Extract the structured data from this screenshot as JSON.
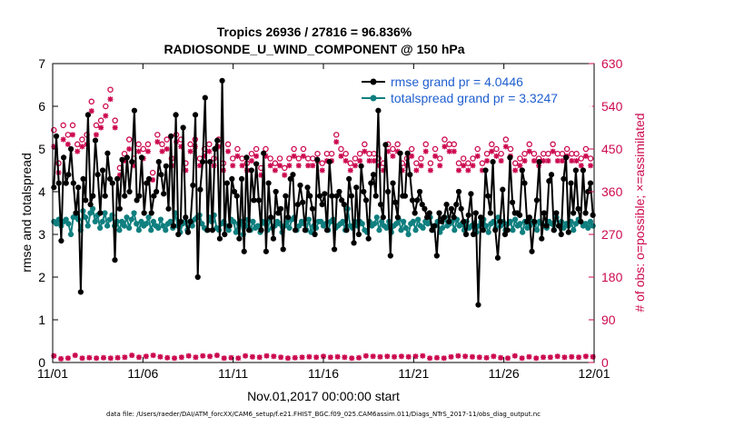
{
  "chart_data": {
    "type": "line",
    "title": "Tropics 26936 / 27816 = 96.836%",
    "subtitle": "RADIOSONDE_U_WIND_COMPONENT @ 150 hPa",
    "xlabel": "Nov.01,2017 00:00:00 start",
    "ylabel": "rmse and totalspread",
    "ylabel_right": "# of obs: o=possible; ×=assimilated",
    "footnote": "data file: /Users/raeder/DAI/ATM_forcXX/CAM6_setup/f.e21.FHIST_BGC.f09_025.CAM6assim.011/Diags_NTrS_2017-11/obs_diag_output.nc",
    "xlim": [
      0,
      30
    ],
    "ylim": [
      0,
      7
    ],
    "ylim_right": [
      0,
      630
    ],
    "x_ticks": [
      0,
      5,
      10,
      15,
      20,
      25,
      30
    ],
    "x_tick_labels": [
      "11/01",
      "11/06",
      "11/11",
      "11/16",
      "11/21",
      "11/26",
      "12/01"
    ],
    "y_ticks": [
      0,
      1,
      2,
      3,
      4,
      5,
      6,
      7
    ],
    "y_tick_labels": [
      "0",
      "1",
      "2",
      "3",
      "4",
      "5",
      "6",
      "7"
    ],
    "y_right_ticks": [
      0,
      90,
      180,
      270,
      360,
      450,
      540,
      630
    ],
    "y_right_tick_labels": [
      "0",
      "90",
      "180",
      "270",
      "360",
      "450",
      "540",
      "630"
    ],
    "legend_position": "top-right",
    "colors": {
      "rmse": "#000000",
      "spread": "#0f7f7f",
      "obs": "#cc0a4f",
      "legend_text": "#1f5fcf"
    },
    "series": [
      {
        "name": "rmse grand pr = 4.0446",
        "axis": "left",
        "values": [
          4.1,
          5.3,
          4.2,
          2.85,
          4.8,
          4.2,
          4.4,
          5.0,
          4.2,
          3.5,
          4.1,
          1.65,
          4.3,
          3.8,
          5.8,
          3.7,
          3.9,
          5.2,
          4.4,
          3.5,
          4.5,
          3.9,
          4.9,
          4.3,
          4.2,
          2.4,
          4.3,
          3.6,
          4.75,
          3.9,
          4.8,
          4.0,
          4.7,
          5.9,
          3.8,
          3.9,
          4.8,
          3.5,
          4.2,
          4.3,
          3.5,
          3.9,
          4.0,
          4.7,
          4.4,
          3.95,
          4.6,
          3.6,
          5.3,
          3.2,
          5.8,
          3.0,
          3.3,
          5.5,
          3.4,
          3.05,
          3.3,
          4.15,
          5.8,
          2.0,
          4.05,
          4.7,
          6.2,
          3.1,
          4.7,
          3.1,
          5.0,
          5.2,
          2.9,
          6.6,
          3.0,
          4.2,
          3.2,
          4.3,
          4.0,
          3.9,
          2.9,
          4.3,
          2.6,
          4.8,
          3.1,
          4.5,
          3.8,
          4.65,
          3.8,
          3.1,
          4.9,
          2.6,
          4.2,
          3.4,
          2.9,
          4.0,
          3.5,
          3.6,
          2.65,
          3.9,
          3.4,
          4.3,
          4.4,
          3.1,
          3.7,
          4.15,
          3.75,
          3.1,
          4.1,
          3.9,
          3.6,
          3.0,
          4.75,
          3.9,
          3.7,
          3.95,
          3.1,
          4.7,
          3.9,
          2.65,
          3.9,
          4.0,
          3.8,
          3.7,
          3.1,
          4.3,
          3.9,
          2.8,
          4.1,
          3.0,
          4.6,
          4.0,
          3.8,
          2.9,
          4.2,
          4.4,
          3.9,
          5.9,
          3.7,
          3.4,
          5.1,
          4.0,
          2.5,
          4.2,
          3.75,
          3.4,
          4.9,
          3.9,
          3.9,
          4.9,
          4.4,
          3.8,
          3.5,
          3.8,
          4.0,
          3.7,
          3.6,
          3.4,
          3.5,
          3.1,
          3.2,
          2.5,
          3.5,
          3.3,
          3.4,
          3.7,
          3.3,
          3.6,
          3.4,
          3.7,
          4.0,
          3.6,
          3.3,
          3.0,
          3.45,
          3.95,
          3.0,
          3.5,
          1.35,
          3.4,
          3.1,
          4.5,
          3.9,
          3.5,
          4.7,
          3.1,
          2.45,
          3.3,
          4.05,
          3.0,
          3.1,
          4.8,
          3.75,
          3.5,
          3.5,
          3.45,
          4.5,
          4.2,
          3.3,
          3.4,
          2.6,
          3.3,
          3.8,
          4.7,
          2.9,
          3.5,
          3.2,
          4.25,
          4.4,
          3.1,
          3.5,
          3.2,
          3.0,
          4.3,
          4.8,
          3.05,
          4.2,
          3.5,
          4.5,
          3.6,
          3.3,
          4.5,
          3.5,
          4.0,
          4.2,
          3.45
        ]
      },
      {
        "name": "totalspread grand pr = 3.3247",
        "axis": "left",
        "values": [
          3.3,
          3.25,
          3.35,
          3.2,
          3.3,
          3.35,
          3.25,
          3.0,
          3.4,
          3.45,
          3.35,
          3.1,
          3.55,
          3.4,
          3.2,
          3.5,
          3.6,
          3.3,
          3.45,
          3.15,
          3.3,
          3.5,
          3.2,
          3.35,
          3.45,
          3.2,
          3.3,
          3.1,
          3.3,
          3.2,
          3.4,
          3.15,
          3.35,
          3.5,
          3.25,
          3.1,
          3.3,
          3.2,
          3.25,
          3.4,
          3.1,
          3.3,
          3.2,
          3.15,
          3.35,
          3.2,
          3.1,
          3.25,
          3.3,
          3.15,
          3.5,
          3.2,
          3.05,
          3.25,
          3.3,
          3.1,
          3.3,
          3.2,
          3.35,
          3.4,
          3.45,
          3.25,
          3.15,
          3.1,
          3.4,
          3.3,
          3.45,
          3.15,
          3.1,
          3.25,
          3.3,
          3.2,
          3.1,
          3.35,
          3.3,
          3.05,
          3.25,
          3.3,
          3.0,
          3.2,
          3.35,
          3.1,
          3.3,
          3.15,
          3.2,
          3.05,
          3.3,
          3.25,
          3.1,
          3.35,
          3.15,
          3.2,
          3.3,
          3.25,
          3.05,
          3.2,
          3.3,
          3.15,
          3.35,
          3.4,
          3.1,
          3.2,
          3.3,
          3.25,
          3.1,
          3.35,
          3.05,
          3.2,
          3.15,
          3.3,
          3.3,
          3.2,
          3.25,
          3.1,
          3.3,
          3.35,
          3.15,
          3.2,
          3.25,
          3.3,
          3.1,
          3.6,
          3.2,
          3.15,
          3.3,
          3.2,
          3.3,
          3.25,
          3.1,
          3.05,
          3.3,
          3.2,
          3.25,
          3.4,
          3.1,
          3.3,
          3.2,
          3.15,
          3.3,
          3.05,
          3.2,
          3.25,
          3.35,
          3.1,
          3.3,
          3.15,
          3.0,
          3.25,
          3.3,
          3.1,
          3.35,
          3.2,
          3.15,
          3.3,
          3.25,
          3.4,
          3.1,
          3.2,
          3.3,
          3.05,
          3.15,
          3.4,
          3.2,
          3.25,
          3.3,
          3.1,
          3.35,
          3.2,
          3.25,
          3.1,
          3.3,
          3.15,
          3.2,
          3.25,
          3.05,
          3.2,
          3.3,
          3.35,
          3.2,
          3.05,
          3.25,
          3.3,
          3.15,
          3.4,
          3.2,
          3.3,
          3.1,
          3.25,
          3.3,
          3.1,
          3.35,
          3.2,
          3.25,
          3.05,
          3.3,
          3.15,
          3.2,
          3.3,
          3.25,
          3.1,
          3.3,
          3.25,
          3.2,
          3.15,
          3.3,
          3.25,
          3.1,
          3.4,
          3.2,
          3.3,
          3.15,
          3.25,
          3.2,
          3.3,
          3.1,
          3.25,
          3.35,
          3.3,
          3.2,
          3.25,
          3.15,
          3.3,
          3.2
        ]
      }
    ],
    "obs_possible": {
      "axis": "right",
      "values": [
        490,
        520,
        420,
        505,
        500,
        540,
        480,
        470,
        500,
        530,
        460,
        500,
        470,
        450,
        480,
        490,
        550,
        520,
        500,
        560,
        510,
        530,
        540,
        550,
        575,
        560,
        510,
        430,
        410,
        480,
        440,
        430,
        470,
        420,
        430,
        450,
        460,
        510,
        450,
        490,
        460,
        410,
        400,
        450,
        480,
        430,
        460,
        470,
        470,
        440,
        430,
        480,
        480,
        460,
        470,
        460,
        420,
        450,
        460,
        440,
        470,
        450,
        430,
        460,
        450,
        420,
        460,
        440,
        430,
        460,
        470,
        440,
        420,
        450,
        460,
        430,
        430,
        440,
        450,
        440,
        430,
        430,
        420,
        440,
        440,
        430,
        450,
        440,
        410,
        440,
        450,
        440,
        430,
        440,
        420,
        460,
        430,
        440,
        410,
        450,
        430,
        440,
        450,
        420,
        430,
        430,
        450,
        440,
        430,
        410,
        430,
        460,
        440,
        430,
        420,
        450,
        440,
        430,
        440,
        460,
        480,
        430,
        450,
        440,
        440,
        470,
        420,
        460,
        430,
        450,
        440,
        430,
        460,
        400,
        440,
        460,
        440,
        450,
        430,
        450,
        420,
        410,
        460,
        450,
        450,
        430,
        460,
        440,
        420,
        450,
        430,
        440,
        450,
        430,
        420,
        440,
        430,
        450,
        460,
        440,
        420,
        430,
        450,
        440,
        430,
        460,
        470,
        460,
        460,
        450,
        460,
        430,
        420,
        440,
        430,
        440,
        420,
        430,
        430,
        440,
        450,
        440,
        420,
        430,
        440,
        420,
        460,
        460,
        450,
        470,
        440,
        430,
        470,
        430,
        450,
        440,
        420,
        440,
        430,
        450,
        440,
        430,
        460,
        440,
        440,
        420,
        430,
        450,
        440,
        430,
        440,
        450,
        460,
        420,
        440,
        430,
        440,
        430,
        450,
        430,
        440,
        430,
        440,
        450,
        430,
        440,
        450,
        440,
        430,
        420
      ]
    },
    "obs_assimilated": {
      "axis": "right",
      "values": [
        455,
        505,
        400,
        490,
        470,
        525,
        460,
        440,
        480,
        510,
        445,
        485,
        455,
        430,
        460,
        475,
        530,
        500,
        480,
        540,
        495,
        510,
        520,
        530,
        555,
        545,
        495,
        410,
        395,
        460,
        425,
        410,
        450,
        405,
        415,
        435,
        445,
        490,
        430,
        470,
        445,
        395,
        385,
        435,
        465,
        415,
        445,
        455,
        450,
        425,
        415,
        460,
        465,
        445,
        455,
        440,
        405,
        435,
        445,
        425,
        455,
        435,
        415,
        445,
        435,
        405,
        445,
        425,
        415,
        445,
        455,
        425,
        405,
        435,
        445,
        415,
        415,
        425,
        435,
        425,
        415,
        415,
        405,
        425,
        425,
        415,
        435,
        425,
        395,
        425,
        435,
        425,
        415,
        425,
        405,
        445,
        415,
        425,
        395,
        435,
        415,
        425,
        435,
        405,
        415,
        360,
        435,
        425,
        415,
        395,
        415,
        445,
        425,
        415,
        405,
        435,
        425,
        415,
        425,
        445,
        465,
        415,
        435,
        425,
        425,
        455,
        405,
        445,
        415,
        435,
        425,
        415,
        445,
        385,
        425,
        445,
        425,
        435,
        415,
        435,
        405,
        395,
        445,
        435,
        435,
        415,
        445,
        425,
        405,
        435,
        415,
        425,
        435,
        415,
        405,
        425,
        415,
        435,
        445,
        425,
        405,
        415,
        435,
        425,
        415,
        445,
        455,
        445,
        445,
        435,
        445,
        415,
        405,
        425,
        415,
        425,
        405,
        415,
        415,
        425,
        435,
        425,
        405,
        415,
        425,
        405,
        445,
        445,
        435,
        455,
        425,
        415,
        455,
        415,
        435,
        425,
        405,
        425,
        415,
        435,
        425,
        415,
        445,
        425,
        425,
        405,
        415,
        435,
        425,
        415,
        425,
        435,
        445,
        405,
        425,
        415,
        425,
        415,
        435,
        415,
        425,
        415,
        425,
        435,
        415,
        425,
        435,
        425,
        415,
        405
      ]
    },
    "obs_rejected": {
      "axis": "right",
      "values": [
        14,
        10,
        12,
        8,
        13,
        16,
        9,
        12,
        10,
        15,
        11,
        13,
        9,
        14,
        12,
        10,
        16,
        11,
        9,
        13,
        15,
        10,
        12,
        14,
        9,
        11,
        13,
        10,
        12,
        14,
        11,
        9,
        13,
        15,
        10,
        12,
        11,
        14,
        9,
        13,
        12,
        10,
        15,
        11,
        9,
        12,
        13,
        14,
        10,
        11,
        12,
        9,
        13,
        15,
        11,
        10,
        12,
        14,
        9,
        13,
        11,
        12,
        10,
        14,
        12,
        9,
        13,
        11,
        10,
        15,
        12,
        11,
        9,
        13,
        14,
        10,
        12,
        11,
        9,
        13,
        12,
        14,
        10,
        11,
        12,
        9,
        13,
        11,
        10,
        12,
        14,
        11,
        9,
        13,
        12,
        10,
        11,
        14,
        12,
        9,
        13,
        11,
        10,
        12,
        22,
        11,
        9,
        13,
        12,
        10,
        14,
        11,
        12,
        9,
        13,
        10,
        12,
        11,
        14,
        9,
        12,
        13,
        10,
        11,
        12,
        14,
        9,
        13,
        11,
        10,
        12,
        11,
        14,
        9,
        12,
        13,
        10,
        11,
        12,
        9,
        14,
        13,
        11,
        10,
        12,
        11,
        9,
        13,
        14,
        10,
        12,
        11,
        9,
        13,
        12,
        10,
        14,
        11,
        12,
        9,
        13,
        11,
        10,
        12,
        14,
        9,
        11,
        13,
        12,
        10,
        11,
        14,
        9,
        12,
        13,
        11,
        10,
        12,
        9,
        14,
        11,
        13,
        12,
        10,
        11,
        9,
        13,
        14,
        12,
        10,
        11,
        12,
        9,
        13,
        11,
        14,
        10,
        12,
        9,
        13,
        11,
        12,
        10,
        14,
        9,
        12,
        13,
        11,
        10,
        12,
        11,
        9,
        14,
        13,
        12,
        10,
        11,
        9,
        13,
        12,
        14,
        10,
        11,
        12,
        9,
        13,
        11,
        10,
        12
      ]
    }
  }
}
